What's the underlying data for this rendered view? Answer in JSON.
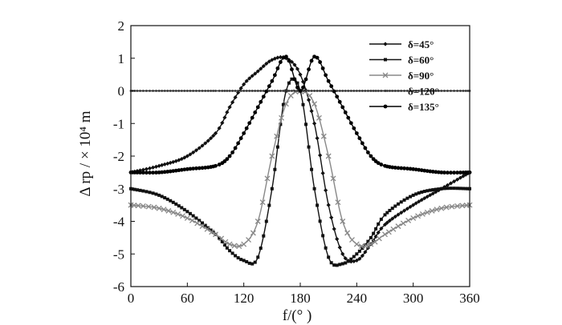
{
  "chart_data": {
    "type": "line",
    "xlabel": "f/(°  )",
    "ylabel": "Δ rp / × 10⁴ m",
    "xlim": [
      0,
      360
    ],
    "ylim": [
      -6,
      2
    ],
    "x_ticks": [
      "0",
      "60",
      "120",
      "180",
      "240",
      "300",
      "360"
    ],
    "y_ticks": [
      "2",
      "1",
      "0",
      "-1",
      "-2",
      "-3",
      "-4",
      "-5",
      "-6"
    ],
    "grid": false,
    "legend_position": "top-right",
    "series": [
      {
        "name": "δ=45°",
        "marker": "diamond",
        "color": "#111111",
        "x": [
          0,
          30,
          60,
          90,
          105,
          120,
          135,
          150,
          165,
          180,
          195,
          210,
          225,
          240,
          255,
          270,
          300,
          330,
          360
        ],
        "y": [
          -2.5,
          -2.3,
          -2.0,
          -1.3,
          -0.5,
          0.2,
          0.6,
          0.95,
          1.0,
          0.5,
          -1.0,
          -3.5,
          -5.0,
          -5.2,
          -4.7,
          -4.1,
          -3.5,
          -3.0,
          -2.5
        ]
      },
      {
        "name": "δ=60°",
        "marker": "square",
        "color": "#111111",
        "x": [
          0,
          30,
          60,
          90,
          105,
          120,
          135,
          150,
          165,
          180,
          195,
          210,
          225,
          240,
          255,
          270,
          300,
          330,
          360
        ],
        "y": [
          -3.0,
          -3.2,
          -3.7,
          -4.4,
          -4.9,
          -5.2,
          -5.1,
          -3.0,
          0.0,
          0.0,
          -3.0,
          -5.1,
          -5.3,
          -5.0,
          -4.5,
          -3.8,
          -3.2,
          -3.0,
          -3.0
        ]
      },
      {
        "name": "δ=90°",
        "marker": "x",
        "color": "#888888",
        "x": [
          0,
          30,
          60,
          90,
          105,
          120,
          135,
          150,
          165,
          180,
          195,
          210,
          225,
          240,
          255,
          270,
          300,
          330,
          360
        ],
        "y": [
          -3.5,
          -3.6,
          -3.9,
          -4.4,
          -4.7,
          -4.7,
          -4.0,
          -2.0,
          -0.4,
          0.0,
          -0.4,
          -2.0,
          -4.0,
          -4.7,
          -4.7,
          -4.4,
          -3.9,
          -3.6,
          -3.5
        ]
      },
      {
        "name": "δ=120°",
        "marker": "dot",
        "color": "#333333",
        "x": [
          0,
          30,
          60,
          90,
          105,
          120,
          135,
          150,
          165,
          180,
          195,
          210,
          225,
          240,
          255,
          270,
          300,
          330,
          360
        ],
        "y": [
          0.0,
          0.0,
          0.0,
          0.0,
          0.0,
          0.0,
          0.0,
          0.0,
          0.0,
          0.0,
          0.0,
          0.0,
          0.0,
          0.0,
          0.0,
          0.0,
          0.0,
          0.0,
          0.0
        ]
      },
      {
        "name": "δ=135°",
        "marker": "circle",
        "color": "#000000",
        "x": [
          0,
          30,
          60,
          90,
          105,
          120,
          135,
          150,
          165,
          180,
          195,
          210,
          225,
          240,
          255,
          270,
          300,
          330,
          360
        ],
        "y": [
          -2.5,
          -2.5,
          -2.4,
          -2.3,
          -2.0,
          -1.3,
          -0.5,
          0.3,
          1.05,
          0.0,
          1.05,
          0.3,
          -0.5,
          -1.3,
          -2.0,
          -2.3,
          -2.4,
          -2.5,
          -2.5
        ]
      }
    ]
  }
}
